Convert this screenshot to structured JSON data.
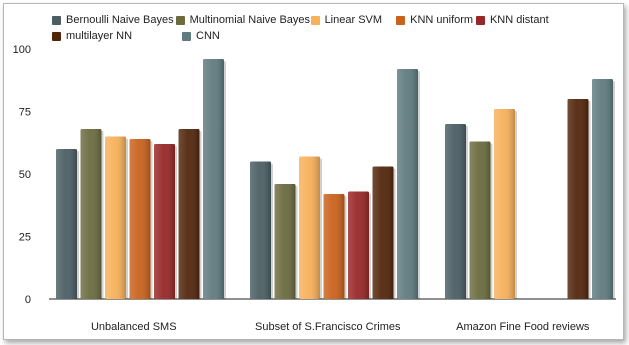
{
  "chart_data": {
    "type": "bar",
    "categories": [
      "Unbalanced SMS",
      "Subset of S.Francisco Crimes",
      "Amazon Fine Food reviews"
    ],
    "series": [
      {
        "name": "Bernoulli Naive Bayes",
        "color": "#4a5e64",
        "values": [
          60,
          55,
          70
        ]
      },
      {
        "name": "Multinomial Naive Bayes",
        "color": "#6b6b3f",
        "values": [
          68,
          46,
          63
        ]
      },
      {
        "name": "Linear SVM",
        "color": "#f7b15a",
        "values": [
          65,
          57,
          76
        ]
      },
      {
        "name": "KNN uniform",
        "color": "#c9621c",
        "values": [
          64,
          42,
          null
        ]
      },
      {
        "name": "KNN distant",
        "color": "#982727",
        "values": [
          62,
          43,
          null
        ]
      },
      {
        "name": "multilayer NN",
        "color": "#52260b",
        "values": [
          68,
          53,
          80
        ]
      },
      {
        "name": "CNN",
        "color": "#5f7b7f",
        "values": [
          96,
          92,
          88
        ]
      }
    ],
    "yticks": [
      0,
      25,
      50,
      75,
      100
    ],
    "ylim": [
      0,
      100
    ],
    "title": "",
    "xlabel": "",
    "ylabel": "",
    "grid": false,
    "legend_position": "top-left"
  }
}
